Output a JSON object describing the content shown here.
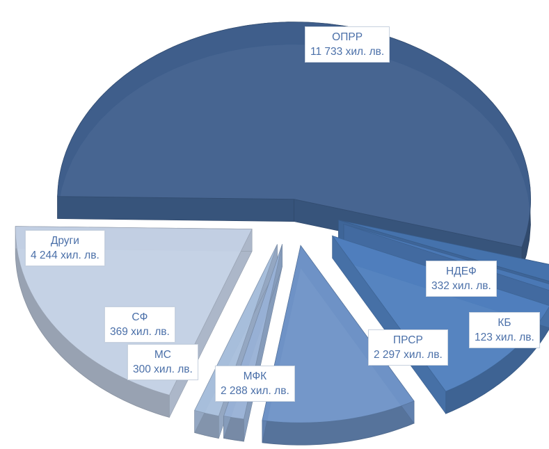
{
  "chart_data": {
    "type": "pie",
    "unit": "хил. лв.",
    "slices": [
      {
        "name": "ОПРР",
        "value": 11733,
        "label_value": "11 733 хил. лв.",
        "color": "#3f5f8c"
      },
      {
        "name": "НДЕФ",
        "value": 332,
        "label_value": "332  хил. лв.",
        "color": "#4673ad"
      },
      {
        "name": "КБ",
        "value": 123,
        "label_value": "123  хил. лв.",
        "color": "#4b79b6"
      },
      {
        "name": "ПРСР",
        "value": 2297,
        "label_value": "2 297 хил. лв.",
        "color": "#4f7fbd"
      },
      {
        "name": "МФК",
        "value": 2288,
        "label_value": "2 288 хил. лв.",
        "color": "#6e93c7"
      },
      {
        "name": "МС",
        "value": 300,
        "label_value": "300 хил. лв.",
        "color": "#98b1d5"
      },
      {
        "name": "СФ",
        "value": 369,
        "label_value": "369 хил. лв.",
        "color": "#a8bedc"
      },
      {
        "name": "Други",
        "value": 4244,
        "label_value": "4 244 хил. лв.",
        "color": "#c3d0e4"
      }
    ]
  }
}
